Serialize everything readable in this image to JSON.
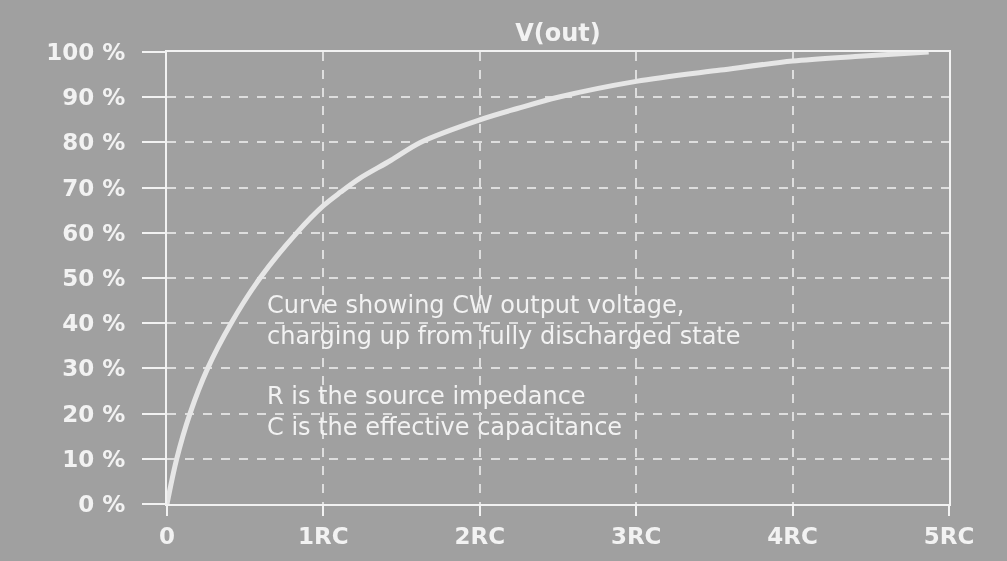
{
  "chart_data": {
    "type": "line",
    "title": "V(out)",
    "x": [
      0,
      0.062,
      0.147,
      0.26,
      0.41,
      0.595,
      0.83,
      1.0,
      1.11,
      1.23,
      1.43,
      1.62,
      2.0,
      2.24,
      2.5,
      3.0,
      3.54,
      4.0,
      4.4,
      4.87
    ],
    "values": [
      0,
      10,
      20,
      30,
      40,
      50,
      60,
      66,
      69,
      72,
      76,
      80,
      85,
      87.5,
      90,
      93.5,
      96,
      98,
      99,
      100
    ],
    "color": "#e6e6e6",
    "xlim": [
      0,
      5
    ],
    "xticks": [
      0,
      {
        "value": 1,
        "label": "1RC"
      },
      {
        "value": 2,
        "label": "2RC"
      },
      {
        "value": 3,
        "label": "3RC"
      },
      {
        "value": 4,
        "label": "4RC"
      },
      {
        "value": 5,
        "label": "5RC"
      }
    ],
    "ylim": [
      0,
      100
    ],
    "yticks": [
      {
        "value": 0,
        "label": "0 %"
      },
      {
        "value": 10,
        "label": "10 %"
      },
      {
        "value": 20,
        "label": "20 %"
      },
      {
        "value": 30,
        "label": "30 %"
      },
      {
        "value": 40,
        "label": "40 %"
      },
      {
        "value": 50,
        "label": "50 %"
      },
      {
        "value": 60,
        "label": "60 %"
      },
      {
        "value": 70,
        "label": "70 %"
      },
      {
        "value": 80,
        "label": "80 %"
      },
      {
        "value": 90,
        "label": "90 %"
      },
      {
        "value": 100,
        "label": "100 %"
      }
    ],
    "grid": true,
    "annotations": [
      "Curve showing CW output voltage,\ncharging up from fully discharged state",
      "R is the source impedance\nC is the effective capacitance"
    ]
  }
}
